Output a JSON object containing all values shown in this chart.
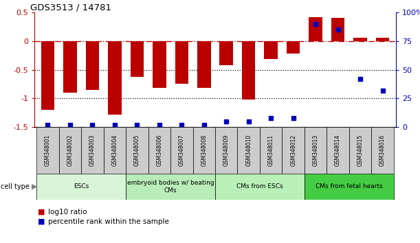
{
  "title": "GDS3513 / 14781",
  "samples": [
    "GSM348001",
    "GSM348002",
    "GSM348003",
    "GSM348004",
    "GSM348005",
    "GSM348006",
    "GSM348007",
    "GSM348008",
    "GSM348009",
    "GSM348010",
    "GSM348011",
    "GSM348012",
    "GSM348013",
    "GSM348014",
    "GSM348015",
    "GSM348016"
  ],
  "log10_ratio": [
    -1.2,
    -0.9,
    -0.85,
    -1.28,
    -0.62,
    -0.82,
    -0.75,
    -0.82,
    -0.42,
    -1.02,
    -0.32,
    -0.22,
    0.42,
    0.4,
    0.06,
    0.06
  ],
  "percentile_rank": [
    2,
    2,
    2,
    2,
    2,
    2,
    2,
    2,
    5,
    5,
    8,
    8,
    90,
    85,
    42,
    32
  ],
  "ylim_left": [
    -1.5,
    0.5
  ],
  "ylim_right": [
    0,
    100
  ],
  "bar_color": "#bb0000",
  "dot_color": "#0000bb",
  "hline_color": "#bb0000",
  "dotted_line_color": "#000000",
  "cell_types": [
    {
      "label": "ESCs",
      "start": 0,
      "end": 3,
      "color": "#d8f5d8"
    },
    {
      "label": "embryoid bodies w/ beating\nCMs",
      "start": 4,
      "end": 7,
      "color": "#b8ecb8"
    },
    {
      "label": "CMs from ESCs",
      "start": 8,
      "end": 11,
      "color": "#b8f0b8"
    },
    {
      "label": "CMs from fetal hearts",
      "start": 12,
      "end": 15,
      "color": "#44cc44"
    }
  ],
  "sample_box_color": "#cccccc",
  "legend_items": [
    {
      "label": "log10 ratio",
      "color": "#bb0000"
    },
    {
      "label": "percentile rank within the sample",
      "color": "#0000bb"
    }
  ]
}
